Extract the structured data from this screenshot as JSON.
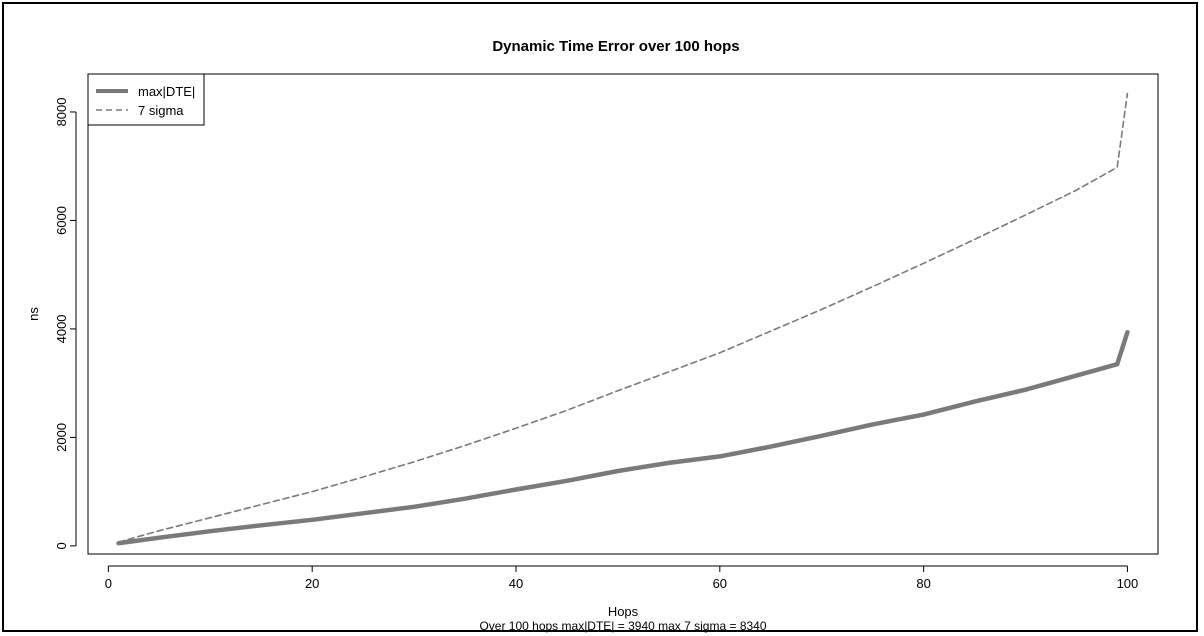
{
  "chart_data": {
    "type": "line",
    "title": "Dynamic Time Error over 100 hops",
    "xlabel": "Hops",
    "ylabel": "ns",
    "subtitle": "Over 100 hops   max|DTE| = 3940   max 7 sigma = 8340",
    "xlim": [
      -2,
      103
    ],
    "ylim": [
      -150,
      8700
    ],
    "x_ticks": [
      0,
      20,
      40,
      60,
      80,
      100
    ],
    "x_tick_labels": [
      "0",
      "20",
      "40",
      "60",
      "80",
      "100"
    ],
    "y_ticks": [
      0,
      2000,
      4000,
      6000,
      8000
    ],
    "y_tick_labels": [
      "0",
      "2000",
      "4000",
      "6000",
      "8000"
    ],
    "legend_position": "top-left",
    "grid": false,
    "series": [
      {
        "name": "max|DTE|",
        "style": "solid-thick",
        "color": "#7a7a7a",
        "x": [
          1,
          5,
          10,
          15,
          20,
          25,
          30,
          35,
          40,
          45,
          50,
          55,
          60,
          65,
          70,
          75,
          80,
          85,
          90,
          95,
          99,
          100
        ],
        "values": [
          50,
          150,
          270,
          380,
          480,
          600,
          720,
          870,
          1040,
          1200,
          1380,
          1530,
          1650,
          1830,
          2030,
          2240,
          2420,
          2660,
          2880,
          3140,
          3350,
          3940
        ]
      },
      {
        "name": "7 sigma",
        "style": "dashed",
        "color": "#7a7a7a",
        "x": [
          1,
          5,
          10,
          15,
          20,
          25,
          30,
          35,
          40,
          45,
          50,
          55,
          60,
          65,
          70,
          75,
          80,
          85,
          90,
          95,
          99,
          100
        ],
        "values": [
          70,
          280,
          520,
          760,
          1000,
          1270,
          1550,
          1850,
          2170,
          2500,
          2860,
          3210,
          3560,
          3960,
          4360,
          4780,
          5210,
          5650,
          6100,
          6560,
          6980,
          8340
        ]
      }
    ]
  }
}
